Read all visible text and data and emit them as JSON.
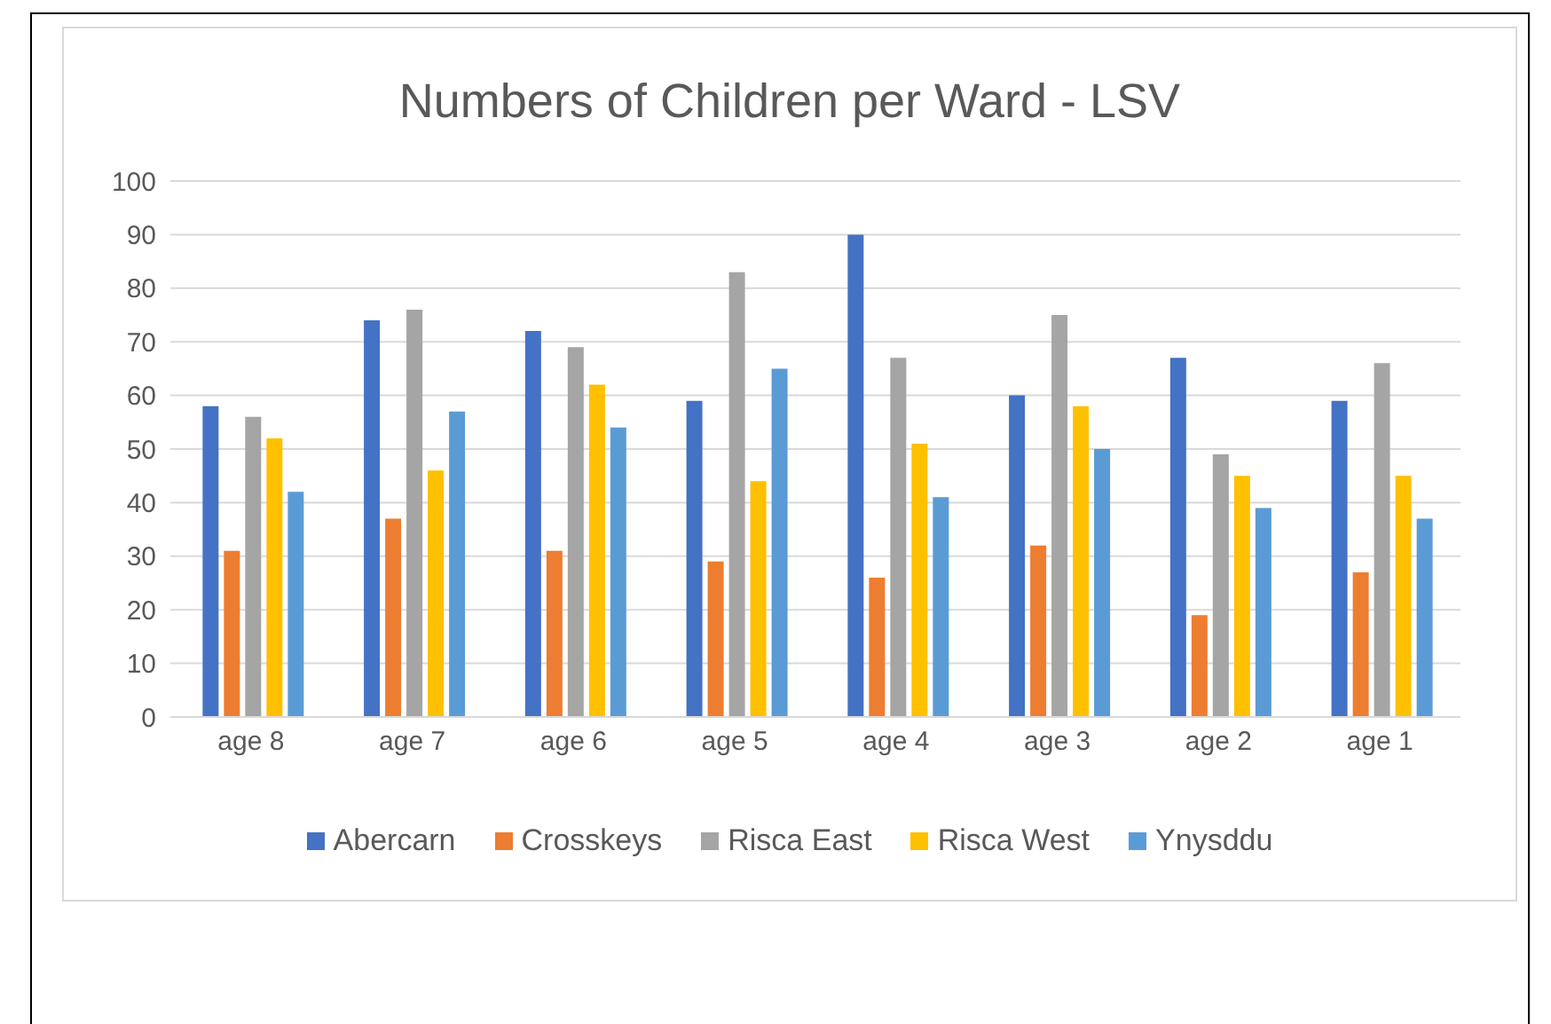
{
  "chart_data": {
    "type": "bar",
    "title": "Numbers of Children per Ward - LSV",
    "categories": [
      "age 8",
      "age 7",
      "age 6",
      "age 5",
      "age 4",
      "age 3",
      "age 2",
      "age 1"
    ],
    "series": [
      {
        "name": "Abercarn",
        "color": "#4472c4",
        "values": [
          58,
          74,
          72,
          59,
          90,
          60,
          67,
          59
        ]
      },
      {
        "name": "Crosskeys",
        "color": "#ed7d31",
        "values": [
          31,
          37,
          31,
          29,
          26,
          32,
          19,
          27
        ]
      },
      {
        "name": "Risca East",
        "color": "#a5a5a5",
        "values": [
          56,
          76,
          69,
          83,
          67,
          75,
          49,
          66
        ]
      },
      {
        "name": "Risca West",
        "color": "#ffc000",
        "values": [
          52,
          46,
          62,
          44,
          51,
          58,
          45,
          45
        ]
      },
      {
        "name": "Ynysddu",
        "color": "#5b9bd5",
        "values": [
          42,
          57,
          54,
          65,
          41,
          50,
          39,
          37
        ]
      }
    ],
    "ylim": [
      0,
      100
    ],
    "yticks": [
      0,
      10,
      20,
      30,
      40,
      50,
      60,
      70,
      80,
      90,
      100
    ],
    "grid": "y",
    "legend": "bottom"
  }
}
